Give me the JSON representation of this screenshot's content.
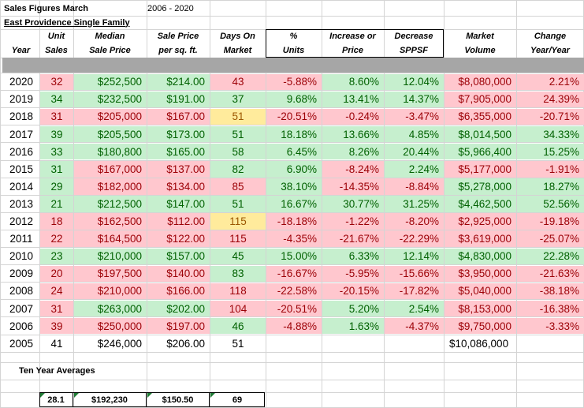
{
  "title": "Sales Figures March",
  "date_range": "2006 - 2020",
  "subtitle": "East Providence Single Family",
  "headers": [
    {
      "line1": "",
      "line2": "Year"
    },
    {
      "line1": "Unit",
      "line2": "Sales"
    },
    {
      "line1": "Median",
      "line2": "Sale Price"
    },
    {
      "line1": "Sale Price",
      "line2": "per sq. ft."
    },
    {
      "line1": "Days On",
      "line2": "Market"
    },
    {
      "line1": "%",
      "line2": "Units"
    },
    {
      "line1": "Increase or",
      "line2": "Price"
    },
    {
      "line1": "Decrease",
      "line2": "SPPSF"
    },
    {
      "line1": "Market",
      "line2": "Volume"
    },
    {
      "line1": "Change",
      "line2": "Year/Year"
    }
  ],
  "rows": [
    {
      "year": "2020",
      "units": "32",
      "median": "$252,500",
      "ppsf": "$214.00",
      "dom": "43",
      "pct_units": "-5.88%",
      "pct_price": "8.60%",
      "pct_sppsf": "12.04%",
      "volume": "$8,080,000",
      "change": "2.21%"
    },
    {
      "year": "2019",
      "units": "34",
      "median": "$232,500",
      "ppsf": "$191.00",
      "dom": "37",
      "pct_units": "9.68%",
      "pct_price": "13.41%",
      "pct_sppsf": "14.37%",
      "volume": "$7,905,000",
      "change": "24.39%"
    },
    {
      "year": "2018",
      "units": "31",
      "median": "$205,000",
      "ppsf": "$167.00",
      "dom": "51",
      "pct_units": "-20.51%",
      "pct_price": "-0.24%",
      "pct_sppsf": "-3.47%",
      "volume": "$6,355,000",
      "change": "-20.71%"
    },
    {
      "year": "2017",
      "units": "39",
      "median": "$205,500",
      "ppsf": "$173.00",
      "dom": "51",
      "pct_units": "18.18%",
      "pct_price": "13.66%",
      "pct_sppsf": "4.85%",
      "volume": "$8,014,500",
      "change": "34.33%"
    },
    {
      "year": "2016",
      "units": "33",
      "median": "$180,800",
      "ppsf": "$165.00",
      "dom": "58",
      "pct_units": "6.45%",
      "pct_price": "8.26%",
      "pct_sppsf": "20.44%",
      "volume": "$5,966,400",
      "change": "15.25%"
    },
    {
      "year": "2015",
      "units": "31",
      "median": "$167,000",
      "ppsf": "$137.00",
      "dom": "82",
      "pct_units": "6.90%",
      "pct_price": "-8.24%",
      "pct_sppsf": "2.24%",
      "volume": "$5,177,000",
      "change": "-1.91%"
    },
    {
      "year": "2014",
      "units": "29",
      "median": "$182,000",
      "ppsf": "$134.00",
      "dom": "85",
      "pct_units": "38.10%",
      "pct_price": "-14.35%",
      "pct_sppsf": "-8.84%",
      "volume": "$5,278,000",
      "change": "18.27%"
    },
    {
      "year": "2013",
      "units": "21",
      "median": "$212,500",
      "ppsf": "$147.00",
      "dom": "51",
      "pct_units": "16.67%",
      "pct_price": "30.77%",
      "pct_sppsf": "31.25%",
      "volume": "$4,462,500",
      "change": "52.56%"
    },
    {
      "year": "2012",
      "units": "18",
      "median": "$162,500",
      "ppsf": "$112.00",
      "dom": "115",
      "pct_units": "-18.18%",
      "pct_price": "-1.22%",
      "pct_sppsf": "-8.20%",
      "volume": "$2,925,000",
      "change": "-19.18%"
    },
    {
      "year": "2011",
      "units": "22",
      "median": "$164,500",
      "ppsf": "$122.00",
      "dom": "115",
      "pct_units": "-4.35%",
      "pct_price": "-21.67%",
      "pct_sppsf": "-22.29%",
      "volume": "$3,619,000",
      "change": "-25.07%"
    },
    {
      "year": "2010",
      "units": "23",
      "median": "$210,000",
      "ppsf": "$157.00",
      "dom": "45",
      "pct_units": "15.00%",
      "pct_price": "6.33%",
      "pct_sppsf": "12.14%",
      "volume": "$4,830,000",
      "change": "22.28%"
    },
    {
      "year": "2009",
      "units": "20",
      "median": "$197,500",
      "ppsf": "$140.00",
      "dom": "83",
      "pct_units": "-16.67%",
      "pct_price": "-5.95%",
      "pct_sppsf": "-15.66%",
      "volume": "$3,950,000",
      "change": "-21.63%"
    },
    {
      "year": "2008",
      "units": "24",
      "median": "$210,000",
      "ppsf": "$166.00",
      "dom": "118",
      "pct_units": "-22.58%",
      "pct_price": "-20.15%",
      "pct_sppsf": "-17.82%",
      "volume": "$5,040,000",
      "change": "-38.18%"
    },
    {
      "year": "2007",
      "units": "31",
      "median": "$263,000",
      "ppsf": "$202.00",
      "dom": "104",
      "pct_units": "-20.51%",
      "pct_price": "5.20%",
      "pct_sppsf": "2.54%",
      "volume": "$8,153,000",
      "change": "-16.38%"
    },
    {
      "year": "2006",
      "units": "39",
      "median": "$250,000",
      "ppsf": "$197.00",
      "dom": "46",
      "pct_units": "-4.88%",
      "pct_price": "1.63%",
      "pct_sppsf": "-4.37%",
      "volume": "$9,750,000",
      "change": "-3.33%"
    },
    {
      "year": "2005",
      "units": "41",
      "median": "$246,000",
      "ppsf": "$206.00",
      "dom": "51",
      "pct_units": "",
      "pct_price": "",
      "pct_sppsf": "",
      "volume": "$10,086,000",
      "change": ""
    }
  ],
  "fills": [
    [
      "",
      "red",
      "grn",
      "grn",
      "red",
      "red",
      "grn",
      "grn",
      "red",
      "red"
    ],
    [
      "",
      "grn",
      "grn",
      "grn",
      "grn",
      "grn",
      "grn",
      "grn",
      "red",
      "red"
    ],
    [
      "",
      "red",
      "red",
      "red",
      "yel",
      "red",
      "red",
      "red",
      "red",
      "red"
    ],
    [
      "",
      "grn",
      "grn",
      "grn",
      "grn",
      "grn",
      "grn",
      "grn",
      "grn",
      "grn"
    ],
    [
      "",
      "grn",
      "grn",
      "grn",
      "grn",
      "grn",
      "grn",
      "grn",
      "grn",
      "grn"
    ],
    [
      "",
      "grn",
      "red",
      "red",
      "grn",
      "grn",
      "red",
      "grn",
      "red",
      "red"
    ],
    [
      "",
      "grn",
      "red",
      "red",
      "red",
      "grn",
      "red",
      "red",
      "grn",
      "grn"
    ],
    [
      "",
      "grn",
      "grn",
      "grn",
      "grn",
      "grn",
      "grn",
      "grn",
      "grn",
      "grn"
    ],
    [
      "",
      "red",
      "red",
      "red",
      "yel",
      "red",
      "red",
      "red",
      "red",
      "red"
    ],
    [
      "",
      "red",
      "red",
      "red",
      "red",
      "red",
      "red",
      "red",
      "red",
      "red"
    ],
    [
      "",
      "grn",
      "grn",
      "grn",
      "grn",
      "grn",
      "grn",
      "grn",
      "grn",
      "grn"
    ],
    [
      "",
      "red",
      "red",
      "red",
      "grn",
      "red",
      "red",
      "red",
      "red",
      "red"
    ],
    [
      "",
      "red",
      "red",
      "red",
      "red",
      "red",
      "red",
      "red",
      "red",
      "red"
    ],
    [
      "",
      "red",
      "grn",
      "grn",
      "red",
      "red",
      "grn",
      "grn",
      "red",
      "red"
    ],
    [
      "",
      "red",
      "red",
      "red",
      "grn",
      "red",
      "grn",
      "red",
      "red",
      "red"
    ],
    [
      "",
      "",
      "",
      "",
      "",
      "",
      "",
      "",
      "",
      ""
    ]
  ],
  "averages_label": "Ten Year Averages",
  "averages": {
    "units": "28.1",
    "median": "$192,230",
    "ppsf": "$150.50",
    "dom": "69"
  },
  "colors": {
    "red_fill": "#ffc7ce",
    "red_text": "#9c0006",
    "green_fill": "#c6efce",
    "green_text": "#006100",
    "yellow_fill": "#ffeb9c",
    "yellow_text": "#9c5700",
    "separator": "#a6a6a6"
  }
}
